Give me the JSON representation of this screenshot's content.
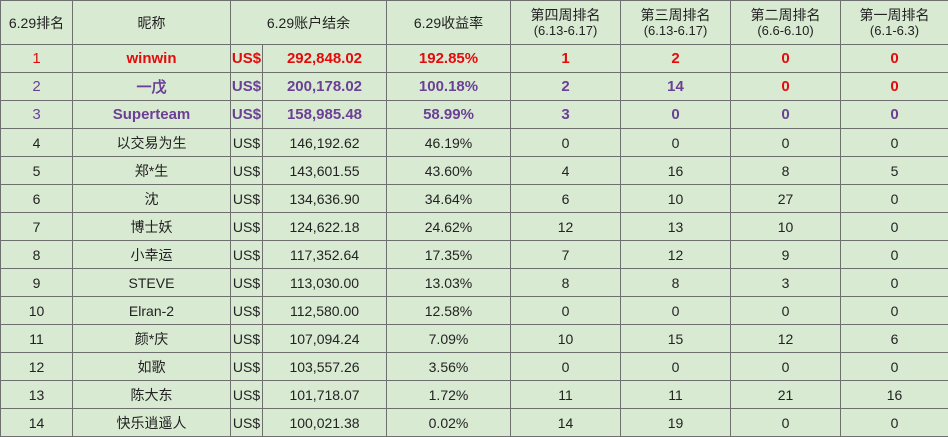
{
  "headers": {
    "rank": "6.29排名",
    "nick": "昵称",
    "balance": "6.29账户结余",
    "return": "6.29收益率",
    "w4": "第四周排名",
    "w4_range": "(6.13-6.17)",
    "w3": "第三周排名",
    "w3_range": "(6.13-6.17)",
    "w2": "第二周排名",
    "w2_range": "(6.6-6.10)",
    "w1": "第一周排名",
    "w1_range": "(6.1-6.3)"
  },
  "currency": "US$",
  "rows": [
    {
      "rank": "1",
      "name": "winwin",
      "cur": "US$",
      "balance": "292,848.02",
      "ret": "192.85%",
      "w4": "1",
      "w3": "2",
      "w2": "0",
      "w1": "0"
    },
    {
      "rank": "2",
      "name": "一戊",
      "cur": "US$",
      "balance": "200,178.02",
      "ret": "100.18%",
      "w4": "2",
      "w3": "14",
      "w2": "0",
      "w1": "0"
    },
    {
      "rank": "3",
      "name": "Superteam",
      "cur": "US$",
      "balance": "158,985.48",
      "ret": "58.99%",
      "w4": "3",
      "w3": "0",
      "w2": "0",
      "w1": "0"
    },
    {
      "rank": "4",
      "name": "以交易为生",
      "cur": "US$",
      "balance": "146,192.62",
      "ret": "46.19%",
      "w4": "0",
      "w3": "0",
      "w2": "0",
      "w1": "0"
    },
    {
      "rank": "5",
      "name": "郑*生",
      "cur": "US$",
      "balance": "143,601.55",
      "ret": "43.60%",
      "w4": "4",
      "w3": "16",
      "w2": "8",
      "w1": "5"
    },
    {
      "rank": "6",
      "name": "沈",
      "cur": "US$",
      "balance": "134,636.90",
      "ret": "34.64%",
      "w4": "6",
      "w3": "10",
      "w2": "27",
      "w1": "0"
    },
    {
      "rank": "7",
      "name": "博士妖",
      "cur": "US$",
      "balance": "124,622.18",
      "ret": "24.62%",
      "w4": "12",
      "w3": "13",
      "w2": "10",
      "w1": "0"
    },
    {
      "rank": "8",
      "name": "小幸运",
      "cur": "US$",
      "balance": "117,352.64",
      "ret": "17.35%",
      "w4": "7",
      "w3": "12",
      "w2": "9",
      "w1": "0"
    },
    {
      "rank": "9",
      "name": "STEVE",
      "cur": "US$",
      "balance": "113,030.00",
      "ret": "13.03%",
      "w4": "8",
      "w3": "8",
      "w2": "3",
      "w1": "0"
    },
    {
      "rank": "10",
      "name": "Elran-2",
      "cur": "US$",
      "balance": "112,580.00",
      "ret": "12.58%",
      "w4": "0",
      "w3": "0",
      "w2": "0",
      "w1": "0"
    },
    {
      "rank": "11",
      "name": "颜*庆",
      "cur": "US$",
      "balance": "107,094.24",
      "ret": "7.09%",
      "w4": "10",
      "w3": "15",
      "w2": "12",
      "w1": "6"
    },
    {
      "rank": "12",
      "name": "如歌",
      "cur": "US$",
      "balance": "103,557.26",
      "ret": "3.56%",
      "w4": "0",
      "w3": "0",
      "w2": "0",
      "w1": "0"
    },
    {
      "rank": "13",
      "name": "陈大东",
      "cur": "US$",
      "balance": "101,718.07",
      "ret": "1.72%",
      "w4": "11",
      "w3": "11",
      "w2": "21",
      "w1": "16"
    },
    {
      "rank": "14",
      "name": "快乐逍遥人",
      "cur": "US$",
      "balance": "100,021.38",
      "ret": "0.02%",
      "w4": "14",
      "w3": "19",
      "w2": "0",
      "w1": "0"
    }
  ],
  "colors": {
    "background": "#d9ead3",
    "border": "#6f6f6f",
    "highlight_red": "#e30b0b",
    "highlight_purple": "#6b3f96"
  }
}
